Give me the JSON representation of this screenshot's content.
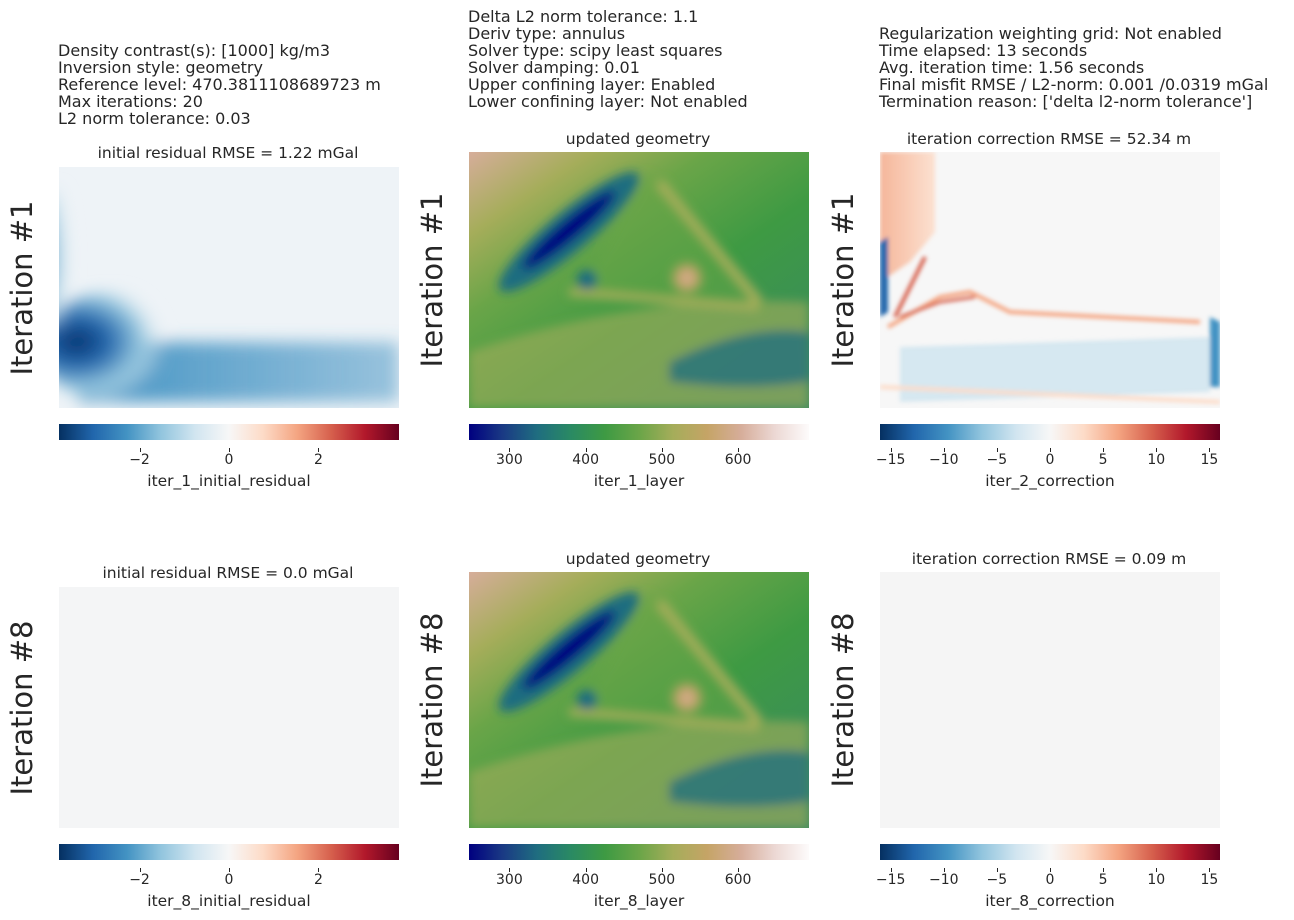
{
  "info": {
    "col1": [
      "Density contrast(s): [1000] kg/m3",
      "Inversion style: geometry",
      "Reference level: 470.3811108689723 m",
      "Max iterations: 20",
      "L2 norm tolerance: 0.03"
    ],
    "col2": [
      "Delta L2 norm tolerance: 1.1",
      "Deriv type: annulus",
      "Solver type: scipy least squares",
      "Solver damping: 0.01",
      "Upper confining layer: Enabled",
      "Lower confining layer: Not enabled"
    ],
    "col3": [
      "Regularization weighting grid: Not enabled",
      "Time elapsed: 13 seconds",
      "Avg. iteration time: 1.56 seconds",
      "Final misfit RMSE / L2-norm: 0.001 /0.0319 mGal",
      "Termination reason: ['delta l2-norm tolerance']"
    ]
  },
  "rows": [
    {
      "label": "Iteration #1",
      "panels": [
        {
          "title": "initial residual RMSE = 1.22 mGal",
          "cbar_label": "iter_1_initial_residual",
          "cmap": "RdBu_r",
          "vmin": -3.8,
          "vmax": 3.8,
          "ticks": [
            "−2",
            "0",
            "2"
          ],
          "tick_values": [
            -2,
            0,
            2
          ]
        },
        {
          "title": "updated geometry",
          "cbar_label": "iter_1_layer",
          "cmap": "gist_earth",
          "vmin": 247,
          "vmax": 693,
          "ticks": [
            "300",
            "400",
            "500",
            "600"
          ],
          "tick_values": [
            300,
            400,
            500,
            600
          ]
        },
        {
          "title": "iteration correction RMSE = 52.34 m",
          "cbar_label": "iter_2_correction",
          "cmap": "RdBu_r",
          "vmin": -16,
          "vmax": 16,
          "ticks": [
            "−15",
            "−10",
            "−5",
            "0",
            "5",
            "10",
            "15"
          ],
          "tick_values": [
            -15,
            -10,
            -5,
            0,
            5,
            10,
            15
          ]
        }
      ]
    },
    {
      "label": "Iteration #8",
      "panels": [
        {
          "title": "initial residual RMSE = 0.0 mGal",
          "cbar_label": "iter_8_initial_residual",
          "cmap": "RdBu_r",
          "vmin": -3.8,
          "vmax": 3.8,
          "ticks": [
            "−2",
            "0",
            "2"
          ],
          "tick_values": [
            -2,
            0,
            2
          ]
        },
        {
          "title": "updated geometry",
          "cbar_label": "iter_8_layer",
          "cmap": "gist_earth",
          "vmin": 247,
          "vmax": 693,
          "ticks": [
            "300",
            "400",
            "500",
            "600"
          ],
          "tick_values": [
            300,
            400,
            500,
            600
          ]
        },
        {
          "title": "iteration correction RMSE = 0.09 m",
          "cbar_label": "iter_8_correction",
          "cmap": "RdBu_r",
          "vmin": -16,
          "vmax": 16,
          "ticks": [
            "−15",
            "−10",
            "−5",
            "0",
            "5",
            "10",
            "15"
          ],
          "tick_values": [
            -15,
            -10,
            -5,
            0,
            5,
            10,
            15
          ]
        }
      ]
    }
  ],
  "chart_data": {
    "type": "heatmap",
    "panels": 6,
    "colormaps": {
      "RdBu_r": [
        "#053061",
        "#2166ac",
        "#4393c3",
        "#92c5de",
        "#d1e5f0",
        "#f7f7f7",
        "#fddbc7",
        "#f4a582",
        "#d6604d",
        "#b2182b",
        "#67001f"
      ],
      "gist_earth": [
        "#000080",
        "#1a3a84",
        "#1f6d80",
        "#2a8a63",
        "#3e9a43",
        "#6aa548",
        "#a5ad5a",
        "#c5a466",
        "#d6ad9a",
        "#ecd8d4",
        "#fdfbfb"
      ]
    }
  }
}
